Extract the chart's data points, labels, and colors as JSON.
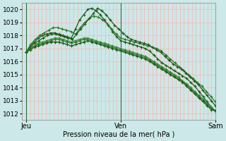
{
  "xlabel": "Pression niveau de la mer( hPa )",
  "bg_color": "#cce8e8",
  "grid_color_h": "#ffb0b0",
  "grid_color_v": "#ffb0b0",
  "sep_color": "#336633",
  "ylim": [
    1011.5,
    1020.5
  ],
  "xlim": [
    0,
    49
  ],
  "yticks": [
    1012,
    1013,
    1014,
    1015,
    1016,
    1017,
    1018,
    1019,
    1020
  ],
  "x_ticks_labels": [
    "Jeu",
    "Ven",
    "Sam"
  ],
  "x_ticks_pos": [
    1,
    25,
    49
  ],
  "series": [
    [
      1016.7,
      1017.2,
      1017.5,
      1017.8,
      1018.0,
      1018.1,
      1018.2,
      1018.2,
      1018.1,
      1018.0,
      1017.9,
      1017.8,
      1018.5,
      1019.2,
      1019.6,
      1020.0,
      1020.1,
      1019.9,
      1019.6,
      1019.2,
      1018.8,
      1018.3,
      1017.9,
      1017.6,
      1017.5,
      1017.4,
      1017.3,
      1017.2,
      1017.1,
      1017.0,
      1016.8,
      1016.5,
      1016.2,
      1015.9,
      1015.7,
      1015.5,
      1015.3,
      1015.1,
      1014.9,
      1014.7,
      1014.4,
      1014.1,
      1013.7,
      1013.3,
      1012.9,
      1012.5,
      1012.2
    ],
    [
      1016.7,
      1017.3,
      1017.7,
      1018.0,
      1018.2,
      1018.4,
      1018.6,
      1018.6,
      1018.5,
      1018.4,
      1018.3,
      1018.1,
      1018.6,
      1019.0,
      1019.3,
      1019.5,
      1019.4,
      1019.2,
      1018.9,
      1018.5,
      1018.1,
      1017.8,
      1017.7,
      1017.6,
      1017.5,
      1017.4,
      1017.3,
      1017.2,
      1017.1,
      1017.0,
      1016.8,
      1016.5,
      1016.2,
      1015.9,
      1015.6,
      1015.3,
      1015.0,
      1014.7,
      1014.4,
      1014.1,
      1013.7,
      1013.3,
      1012.9
    ],
    [
      1016.7,
      1017.1,
      1017.4,
      1017.6,
      1017.8,
      1018.0,
      1018.1,
      1018.1,
      1018.0,
      1017.9,
      1017.8,
      1017.7,
      1018.1,
      1018.5,
      1018.9,
      1019.3,
      1019.7,
      1020.1,
      1019.9,
      1019.6,
      1019.2,
      1018.8,
      1018.5,
      1018.2,
      1017.9,
      1017.7,
      1017.6,
      1017.5,
      1017.4,
      1017.3,
      1017.1,
      1016.9,
      1016.7,
      1016.4,
      1016.1,
      1015.8,
      1015.6,
      1015.4,
      1015.1,
      1014.8,
      1014.5,
      1014.2,
      1013.8,
      1013.4,
      1013.0,
      1012.6
    ],
    [
      1016.7,
      1017.0,
      1017.2,
      1017.4,
      1017.5,
      1017.6,
      1017.7,
      1017.8,
      1017.8,
      1017.7,
      1017.6,
      1017.5,
      1017.6,
      1017.7,
      1017.8,
      1017.8,
      1017.7,
      1017.6,
      1017.5,
      1017.4,
      1017.3,
      1017.2,
      1017.1,
      1017.0,
      1016.9,
      1016.8,
      1016.7,
      1016.6,
      1016.5,
      1016.4,
      1016.2,
      1016.0,
      1015.8,
      1015.6,
      1015.4,
      1015.2,
      1015.0,
      1014.8,
      1014.5,
      1014.3,
      1014.0,
      1013.7,
      1013.4,
      1013.1,
      1012.8,
      1012.5,
      1012.2
    ],
    [
      1016.7,
      1017.0,
      1017.2,
      1017.3,
      1017.4,
      1017.5,
      1017.6,
      1017.7,
      1017.7,
      1017.6,
      1017.5,
      1017.4,
      1017.5,
      1017.6,
      1017.7,
      1017.7,
      1017.6,
      1017.5,
      1017.4,
      1017.3,
      1017.2,
      1017.1,
      1017.0,
      1016.9,
      1016.8,
      1016.7,
      1016.6,
      1016.5,
      1016.4,
      1016.3,
      1016.1,
      1015.9,
      1015.7,
      1015.5,
      1015.3,
      1015.1,
      1014.9,
      1014.7,
      1014.5,
      1014.2,
      1013.9,
      1013.6,
      1013.3,
      1013.0,
      1012.7,
      1012.4,
      1012.2
    ],
    [
      1016.7,
      1016.9,
      1017.1,
      1017.2,
      1017.3,
      1017.4,
      1017.5,
      1017.5,
      1017.5,
      1017.4,
      1017.3,
      1017.2,
      1017.3,
      1017.4,
      1017.5,
      1017.6,
      1017.5,
      1017.4,
      1017.3,
      1017.2,
      1017.1,
      1017.0,
      1016.9,
      1016.8,
      1016.7,
      1016.6,
      1016.5,
      1016.4,
      1016.3,
      1016.2,
      1016.0,
      1015.8,
      1015.6,
      1015.4,
      1015.2,
      1015.0,
      1014.8,
      1014.6,
      1014.4,
      1014.1,
      1013.8,
      1013.5,
      1013.2,
      1012.9,
      1012.6,
      1012.3,
      1012.2
    ]
  ],
  "line_colors": [
    "#1a5c1a",
    "#2d7a2d",
    "#1a5c1a",
    "#3a8a3a",
    "#2d7a2d",
    "#1a5c1a"
  ],
  "marker": "+",
  "marker_size": 3,
  "line_width": 0.9
}
